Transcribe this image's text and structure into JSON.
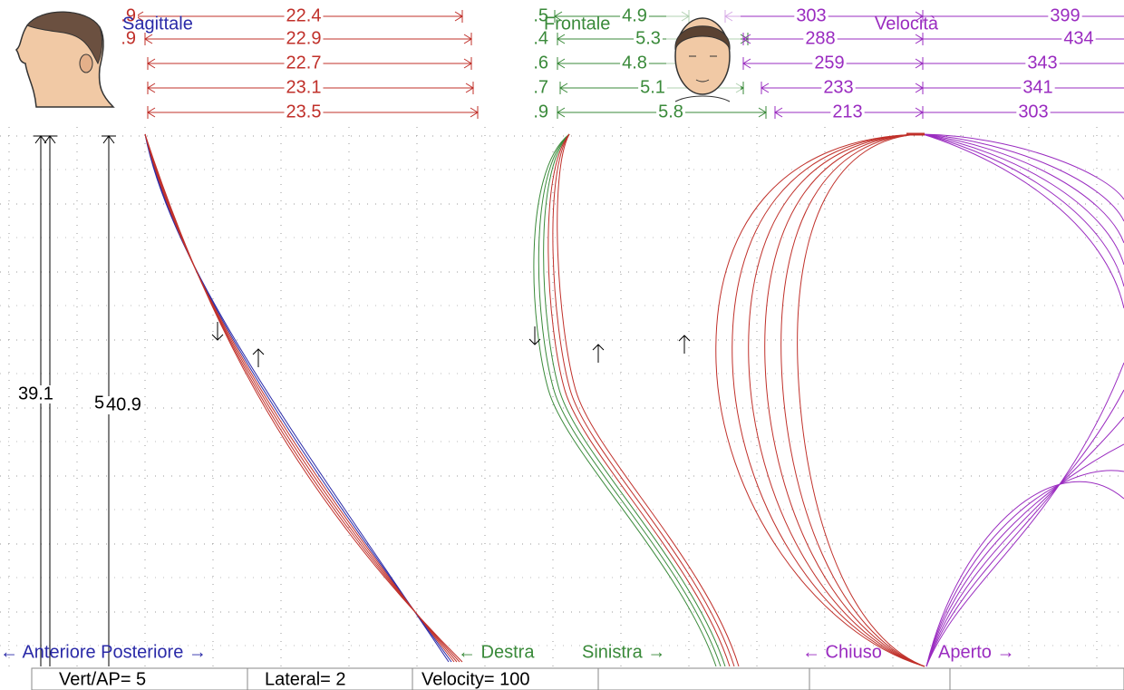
{
  "sagittal": {
    "title": "Sagittale",
    "left_values": [
      ".9",
      ".9"
    ],
    "distances": [
      22.4,
      22.9,
      22.7,
      23.1,
      23.5
    ]
  },
  "frontal": {
    "title": "Frontale",
    "left_values": [
      ".5",
      ".4",
      ".6",
      ".7",
      ".9"
    ],
    "distances": [
      4.9,
      5.3,
      4.8,
      5.1,
      5.8
    ]
  },
  "velocity": {
    "title": "Velocità",
    "closing": [
      303,
      288,
      259,
      233,
      213
    ],
    "opening": [
      399,
      434,
      343,
      341,
      303
    ]
  },
  "vertical": {
    "labels": [
      39.1,
      5,
      40.9
    ]
  },
  "directions": {
    "sagittal": "← Anteriore Posteriore →",
    "right": "← Destra",
    "left": "Sinistra →",
    "closed": "← Chiuso",
    "open": "Aperto →"
  },
  "status_bar": [
    "Vert/AP= 5",
    "Lateral= 2",
    "Velocity= 100"
  ]
}
